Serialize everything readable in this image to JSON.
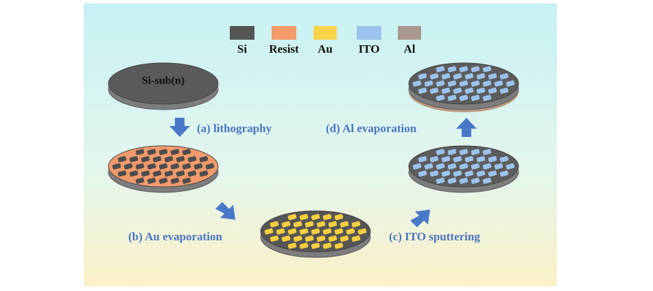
{
  "legend": [
    "Si",
    "Resist",
    "Au",
    "ITO",
    "Al"
  ],
  "wafer_label": "Si-sub(n)",
  "steps": [
    "(a) lithography",
    "(b) Au evaporation",
    "(c) ITO sputtering",
    "(d) Al evaporation"
  ]
}
